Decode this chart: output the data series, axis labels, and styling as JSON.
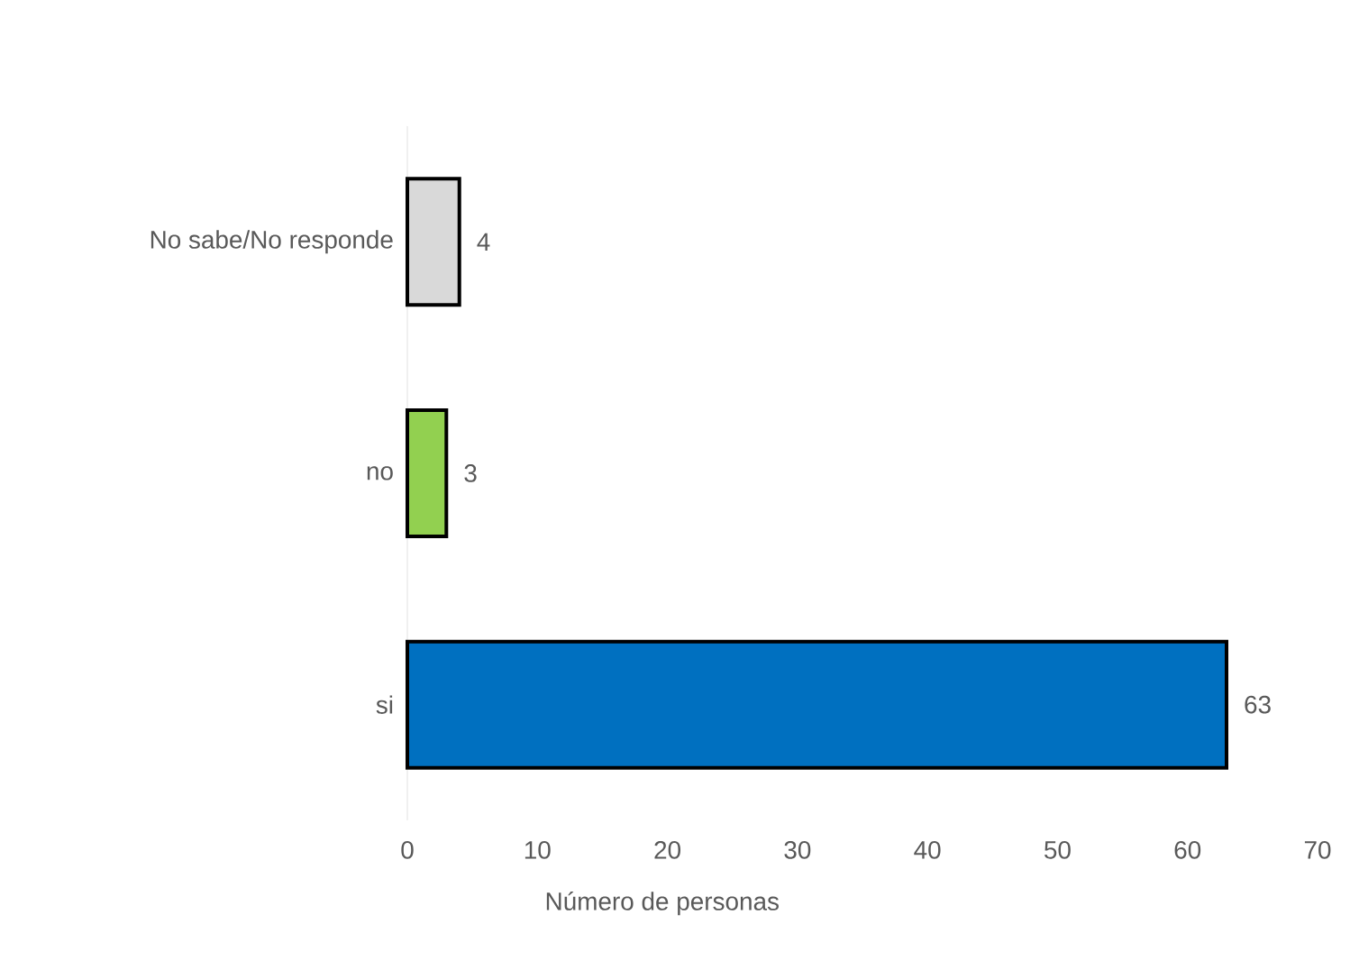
{
  "chart_data": {
    "type": "bar",
    "orientation": "horizontal",
    "xlabel": "Número de personas",
    "categories": [
      "No sabe/No responde",
      "no",
      "si"
    ],
    "values": [
      4,
      3,
      63
    ],
    "colors": [
      "#d9d9d9",
      "#92d050",
      "#0070c0"
    ],
    "xlim": [
      0,
      70
    ],
    "xticks": [
      0,
      10,
      20,
      30,
      40,
      50,
      60,
      70
    ],
    "data_labels": true
  }
}
